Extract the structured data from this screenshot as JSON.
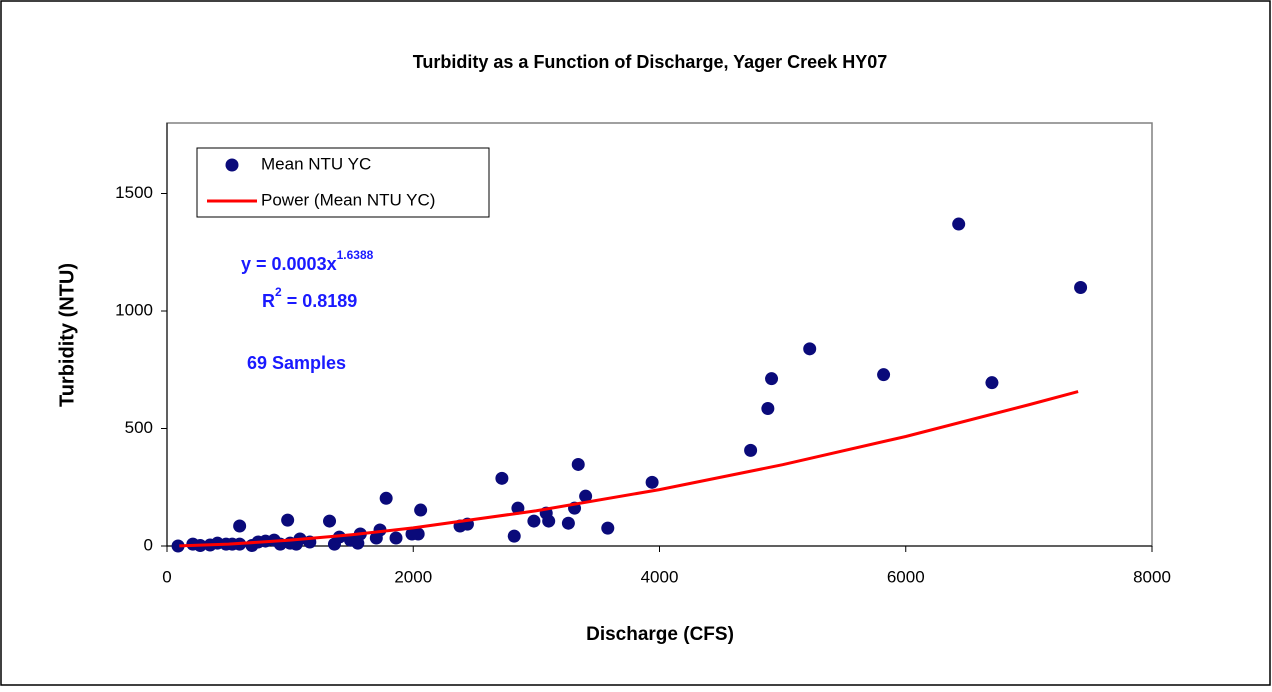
{
  "chart_data": {
    "type": "scatter",
    "title": "Turbidity as a Function of Discharge, Yager Creek HY07",
    "x_label": "Discharge (CFS)",
    "y_label": "Turbidity (NTU)",
    "xlim": [
      0,
      8000
    ],
    "xticks": [
      0,
      2000,
      4000,
      6000,
      8000
    ],
    "ylim": [
      0,
      1800
    ],
    "yticks": [
      0,
      500,
      1000,
      1500
    ],
    "legend": "upper left",
    "series": [
      {
        "name": "Mean NTU YC",
        "color": "#0a0a7a",
        "style": "markers",
        "x": [
          90,
          210,
          270,
          350,
          410,
          480,
          530,
          590,
          590,
          690,
          740,
          800,
          870,
          920,
          980,
          1000,
          1050,
          1080,
          1160,
          1320,
          1360,
          1400,
          1490,
          1550,
          1570,
          1700,
          1730,
          1780,
          1860,
          1990,
          2040,
          2060,
          2380,
          2440,
          2720,
          2820,
          2850,
          2980,
          3080,
          3100,
          3260,
          3310,
          3340,
          3400,
          3580,
          3940,
          4740,
          4880,
          4910,
          5220,
          5820,
          6430,
          6700,
          7420
        ],
        "values": [
          0,
          8,
          2,
          4,
          12,
          8,
          8,
          85,
          8,
          2,
          17,
          21,
          25,
          8,
          110,
          12,
          8,
          30,
          17,
          106,
          8,
          38,
          25,
          12,
          51,
          34,
          68,
          203,
          34,
          51,
          51,
          153,
          85,
          93,
          288,
          42,
          161,
          106,
          140,
          106,
          97,
          161,
          347,
          212,
          76,
          271,
          407,
          585,
          712,
          839,
          729,
          1370,
          695,
          1100
        ]
      },
      {
        "name": "Power (Mean NTU YC)",
        "color": "#ff0000",
        "style": "line",
        "x": [
          100,
          500,
          1000,
          1500,
          2000,
          3000,
          4000,
          5000,
          6000,
          7000,
          7400
        ],
        "values": [
          0.57,
          7.9,
          24.8,
          48,
          77,
          150,
          240,
          346,
          466,
          601,
          657
        ]
      }
    ],
    "annotations": {
      "equation_base": "y = 0.0003x",
      "equation_exponent": "1.6388",
      "r2_base": "R",
      "r2_exponent": "2",
      "r2_value": " = 0.8189",
      "samples": "69 Samples"
    }
  }
}
